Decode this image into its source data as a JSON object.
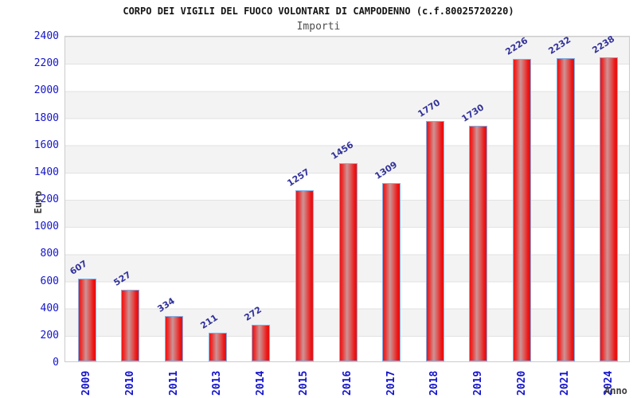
{
  "header": {
    "title": "CORPO DEI VIGILI DEL FUOCO VOLONTARI DI CAMPODENNO (c.f.80025720220)",
    "subtitle": "Importi"
  },
  "chart_data": {
    "type": "bar",
    "title": "CORPO DEI VIGILI DEL FUOCO VOLONTARI DI CAMPODENNO (c.f.80025720220)",
    "subtitle": "Importi",
    "categories": [
      "2009",
      "2010",
      "2011",
      "2013",
      "2014",
      "2015",
      "2016",
      "2017",
      "2018",
      "2019",
      "2020",
      "2021",
      "2024"
    ],
    "values": [
      607,
      527,
      334,
      211,
      272,
      1257,
      1456,
      1309,
      1770,
      1730,
      2226,
      2232,
      2238
    ],
    "xlabel": "Anno",
    "ylabel": "Euro",
    "ylim": [
      0,
      2400
    ],
    "ytick_step": 200,
    "grid": "horizontal-bands",
    "legend": "none",
    "colors": {
      "bar_fill_edge": "#ee1212",
      "bar_fill_highlight": "#cd9496",
      "bar_border": "#7fb0e8",
      "tick_label": "#1414cc",
      "value_label": "#32329b",
      "band_gray": "#f3f3f3",
      "grid_line": "#e2e2e2",
      "plot_border": "#cbcbcb",
      "axis_title": "#3c3c3c",
      "title_text": "#141414",
      "subtitle_text": "#4e4e4e"
    }
  }
}
